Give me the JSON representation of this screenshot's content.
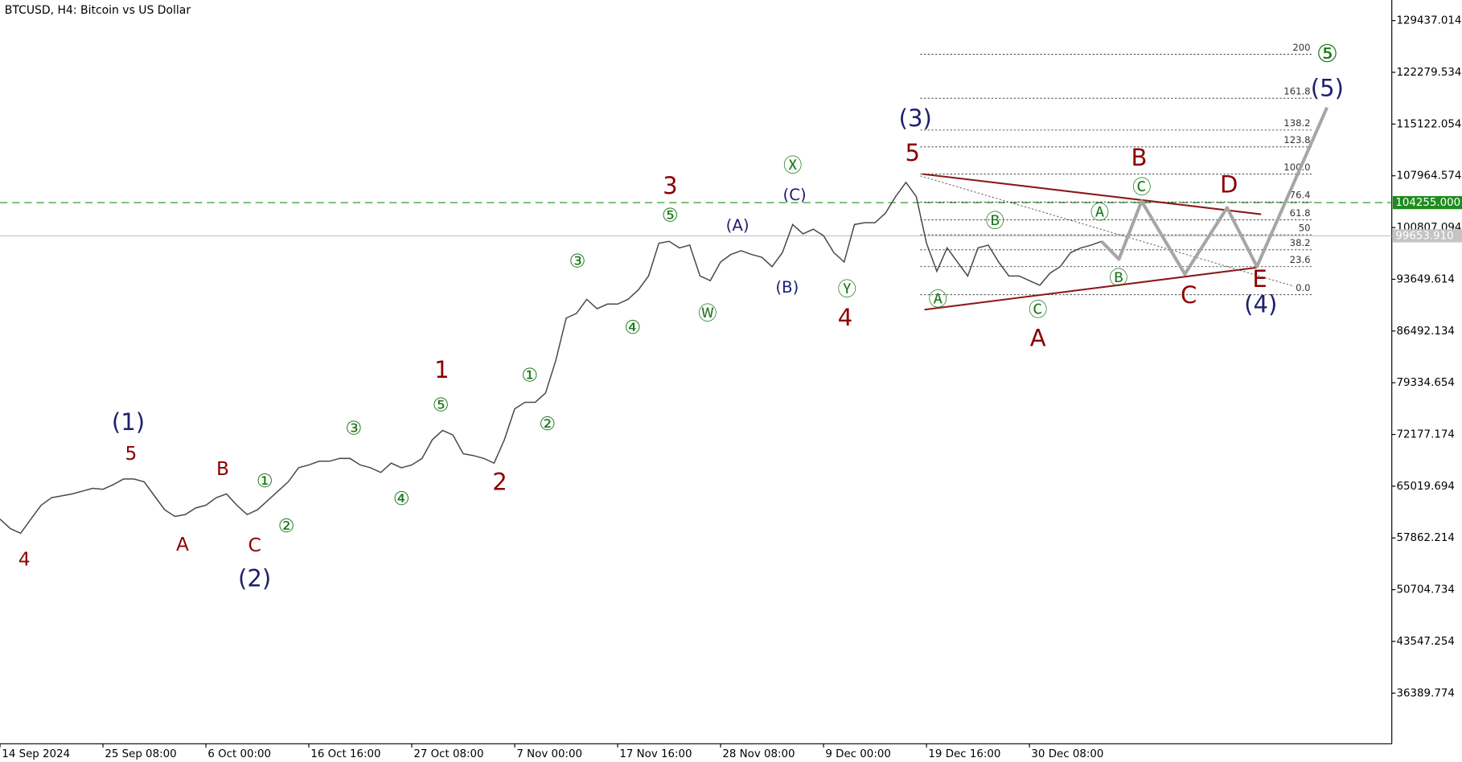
{
  "chart_data": {
    "type": "line",
    "title": "BTCUSD, H4:  Bitcoin vs US Dollar",
    "xlim": [
      0,
      135.2
    ],
    "ylim": [
      29388,
      132284
    ],
    "xticks": [
      {
        "value": 0,
        "label": "14 Sep 2024"
      },
      {
        "value": 10,
        "label": "25 Sep 08:00"
      },
      {
        "value": 20,
        "label": "6 Oct 00:00"
      },
      {
        "value": 30,
        "label": "16 Oct 16:00"
      },
      {
        "value": 40,
        "label": "27 Oct 08:00"
      },
      {
        "value": 50,
        "label": "7 Nov 00:00"
      },
      {
        "value": 60,
        "label": "17 Nov 16:00"
      },
      {
        "value": 70,
        "label": "28 Nov 08:00"
      },
      {
        "value": 80,
        "label": "9 Dec 00:00"
      },
      {
        "value": 90,
        "label": "19 Dec 16:00"
      },
      {
        "value": 100,
        "label": "30 Dec 08:00"
      }
    ],
    "yticks": [
      129437.014,
      122279.534,
      115122.054,
      107964.574,
      100807.094,
      93649.614,
      86492.134,
      79334.654,
      72177.174,
      65019.694,
      57862.214,
      50704.734,
      43547.254,
      36389.774
    ],
    "series": [
      {
        "color": "#4a4a4a",
        "values": [
          60470,
          59160,
          58510,
          60470,
          62390,
          63430,
          63690,
          63950,
          64330,
          64720,
          64590,
          65240,
          66020,
          66020,
          65630,
          63690,
          61740,
          60840,
          61100,
          62010,
          62390,
          63430,
          63950,
          62390,
          61100,
          61740,
          63040,
          64330,
          65630,
          67570,
          67960,
          68480,
          68480,
          68870,
          68870,
          67960,
          67570,
          66920,
          68220,
          67570,
          67960,
          68870,
          71450,
          72750,
          72100,
          69510,
          69250,
          68870,
          68220,
          71450,
          75720,
          76630,
          76630,
          77920,
          82460,
          88280,
          88930,
          90870,
          89570,
          90220,
          90220,
          90870,
          92160,
          94100,
          98630,
          98890,
          97980,
          98370,
          94100,
          93460,
          96050,
          97080,
          97600,
          97080,
          96690,
          95400,
          97340,
          101220,
          99930,
          100570,
          99670,
          97340,
          96050,
          101220,
          101480,
          101480,
          102770,
          105100,
          107050,
          105100,
          98630,
          94750,
          97980,
          96050,
          94100,
          97980,
          98370,
          96050,
          94100,
          94100,
          93460,
          92810,
          94490,
          95400,
          97340,
          97980,
          98370,
          98890
        ]
      }
    ],
    "projection": {
      "color": "#a6a6a6",
      "x": [
        107,
        108.7,
        110.9,
        115.1,
        119.2,
        122.1,
        128.9
      ],
      "values": [
        98890,
        96430,
        104460,
        94360,
        103550,
        95400,
        117400
      ]
    },
    "trendlines": [
      {
        "color": "#8b1a1a",
        "x": [
          89.6,
          122.5
        ],
        "values": [
          108210,
          102645
        ]
      },
      {
        "color": "#8b1a1a",
        "x": [
          89.8,
          122.1
        ],
        "values": [
          89443,
          95267
        ]
      },
      {
        "color": "#555555",
        "dotted": true,
        "x": [
          89.4,
          125.7
        ],
        "values": [
          107952,
          92679
        ]
      }
    ],
    "fib_levels": [
      {
        "label": "0.0",
        "value": 91515
      },
      {
        "label": "23.6",
        "value": 95400
      },
      {
        "label": "38.2",
        "value": 97730
      },
      {
        "label": "50",
        "value": 99800
      },
      {
        "label": "61.8",
        "value": 101870
      },
      {
        "label": "76.4",
        "value": 104330
      },
      {
        "label": "100.0",
        "value": 108210
      },
      {
        "label": "123.8",
        "value": 111960
      },
      {
        "label": "138.2",
        "value": 114290
      },
      {
        "label": "161.8",
        "value": 118690
      },
      {
        "label": "200",
        "value": 124780
      }
    ],
    "price_lines": [
      {
        "value": 104255.0,
        "label": "104255.000",
        "color": "#1e8c1e",
        "dashed": true
      },
      {
        "value": 99653.91,
        "label": "99653.910",
        "color": "#c4c4c4",
        "dashed": false
      }
    ],
    "wave_labels": [
      "(1)",
      "(2)",
      "(3)",
      "(4)",
      "(5)",
      "(A)",
      "(C)",
      "(B)",
      "4",
      "5",
      "B",
      "A",
      "C",
      "1",
      "2",
      "3",
      "4",
      "5",
      "A",
      "B",
      "C",
      "D",
      "E",
      "①",
      "②",
      "③",
      "④",
      "⑤",
      "①",
      "②",
      "③",
      "④",
      "⑤",
      "Ⓦ",
      "Ⓧ",
      "Ⓨ",
      "Ⓐ",
      "Ⓑ",
      "Ⓒ",
      "Ⓐ",
      "Ⓑ",
      "Ⓒ",
      "⑤"
    ]
  }
}
